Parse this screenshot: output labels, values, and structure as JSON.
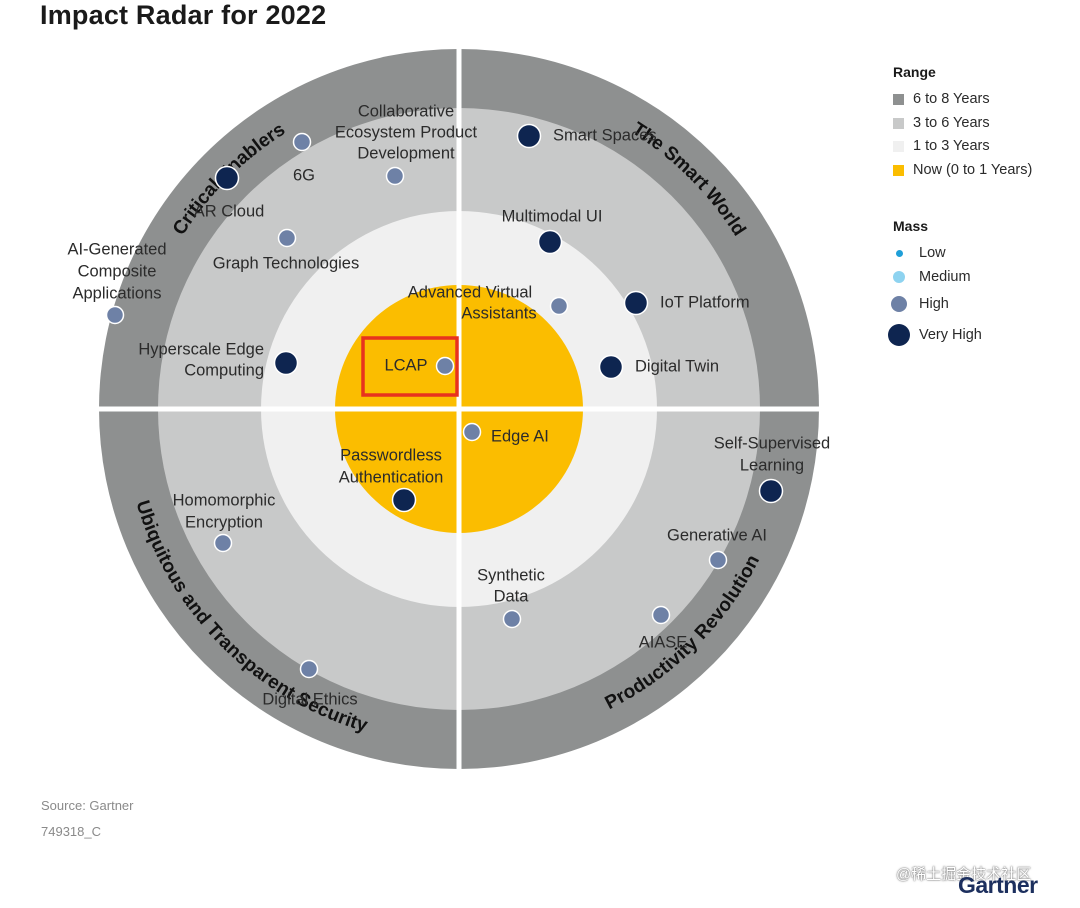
{
  "title": "Impact Radar for 2022",
  "quadrants": [
    {
      "name": "Critical Enablers"
    },
    {
      "name": "The Smart World"
    },
    {
      "name": "Ubiquitous and Transparent Security"
    },
    {
      "name": "Productivity Revolution"
    }
  ],
  "legend": {
    "range_title": "Range",
    "range": [
      {
        "label": "6 to 8 Years",
        "color": "#8e9090"
      },
      {
        "label": "3 to 6 Years",
        "color": "#c8c9c9"
      },
      {
        "label": "1 to 3 Years",
        "color": "#f0f0f0"
      },
      {
        "label": "Now (0 to 1 Years)",
        "color": "#fbbd00"
      }
    ],
    "mass_title": "Mass",
    "mass": [
      {
        "label": "Low",
        "color": "#1f9fd8",
        "level": 1
      },
      {
        "label": "Medium",
        "color": "#8ed3f0",
        "level": 2
      },
      {
        "label": "High",
        "color": "#6e81a6",
        "level": 3
      },
      {
        "label": "Very High",
        "color": "#0e2550",
        "level": 4
      }
    ]
  },
  "colors": {
    "outer_ring": "#8e9090",
    "ring_3_6": "#c8c9c9",
    "ring_1_3": "#f0f0f0",
    "core_now": "#fbbd00",
    "divider": "#ffffff",
    "highlight_box": "#e8321e"
  },
  "technologies": [
    {
      "label": "LCAP",
      "mass": "High",
      "highlighted": true
    },
    {
      "label": "Edge AI",
      "mass": "High"
    },
    {
      "label": "Passwordless Authentication",
      "mass": "Very High"
    },
    {
      "label": "Advanced Virtual Assistants",
      "mass": "High"
    },
    {
      "label": "Smart Spaces",
      "mass": "Very High"
    },
    {
      "label": "Multimodal UI",
      "mass": "Very High"
    },
    {
      "label": "IoT Platform",
      "mass": "Very High"
    },
    {
      "label": "Digital Twin",
      "mass": "Very High"
    },
    {
      "label": "Collaborative Ecosystem Product Development",
      "mass": "High"
    },
    {
      "label": "6G",
      "mass": "High"
    },
    {
      "label": "AR Cloud",
      "mass": "Very High"
    },
    {
      "label": "Graph Technologies",
      "mass": "High"
    },
    {
      "label": "AI-Generated Composite Applications",
      "mass": "High"
    },
    {
      "label": "Hyperscale Edge Computing",
      "mass": "Very High"
    },
    {
      "label": "Self-Supervised Learning",
      "mass": "Very High"
    },
    {
      "label": "Generative AI",
      "mass": "High"
    },
    {
      "label": "AIASE",
      "mass": "High"
    },
    {
      "label": "Synthetic Data",
      "mass": "High"
    },
    {
      "label": "Homomorphic Encryption",
      "mass": "High"
    },
    {
      "label": "Digital Ethics",
      "mass": "High"
    }
  ],
  "footer": {
    "source": "Source: Gartner",
    "id": "749318_C"
  },
  "watermark": "@稀土掘金技术社区",
  "brand": "Gartner"
}
